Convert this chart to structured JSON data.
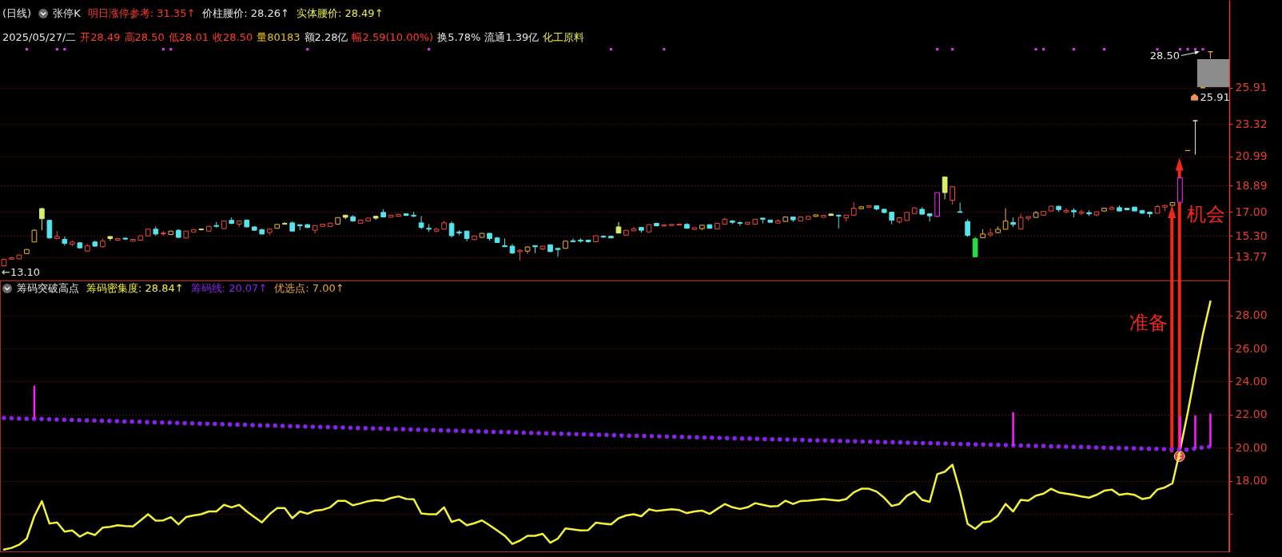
{
  "chart_data": [
    {
      "type": "candlestick",
      "title": "(日线)",
      "subtitle": "张停K",
      "annotations": [
        "明日涨停参考: 31.35↑",
        "价柱腰价: 28.26↑",
        "实体腰价: 28.49↑",
        "2025/05/27/二",
        "开28.49",
        "高28.50",
        "低28.01",
        "收28.50",
        "量80183",
        "额2.28亿",
        "幅2.59(10.00%)",
        "换5.78%",
        "流通1.39亿",
        "化工原料",
        "←13.10",
        "28.50",
        "25.91",
        "机会"
      ],
      "categories": [
        null,
        null,
        null,
        null,
        null,
        null,
        null,
        null,
        null,
        null,
        null,
        null,
        null,
        null,
        null,
        null,
        null,
        null,
        null,
        null,
        null,
        null,
        null,
        null,
        null,
        null,
        null,
        null,
        null,
        null,
        null,
        null,
        null,
        null,
        null,
        null,
        null,
        null,
        null,
        null,
        null,
        null,
        null,
        null,
        null,
        null,
        null,
        null,
        null,
        null,
        null,
        null,
        null,
        null,
        null,
        null,
        null,
        null,
        null,
        null,
        null,
        null,
        null,
        null,
        null,
        null,
        null,
        null,
        null,
        null,
        null,
        null,
        null,
        null,
        null,
        null,
        null,
        null,
        null,
        null,
        null,
        null,
        null,
        null,
        null,
        null,
        null,
        null,
        null,
        null,
        null,
        null,
        null,
        null,
        null,
        null,
        null,
        null,
        null,
        null,
        null,
        null,
        null,
        null,
        null,
        null,
        null,
        null,
        null,
        null,
        null,
        null,
        null,
        null,
        null,
        null,
        null,
        null,
        null,
        null,
        null,
        null,
        null,
        null,
        null,
        null,
        null,
        null,
        null,
        null,
        null,
        null,
        null,
        null,
        null,
        null,
        null,
        null,
        null,
        null,
        null,
        null,
        null,
        null,
        null,
        null,
        null,
        null,
        null,
        null,
        null,
        null,
        null,
        null,
        null,
        null,
        null,
        null,
        null,
        null
      ],
      "ohlc": [
        [
          13.15,
          13.65,
          13.1,
          13.62
        ],
        [
          13.63,
          13.8,
          13.6,
          13.72
        ],
        [
          13.65,
          13.95,
          13.63,
          13.93
        ],
        [
          14.03,
          14.35,
          14.0,
          14.32
        ],
        [
          14.86,
          15.78,
          14.86,
          15.7
        ],
        [
          17.25,
          17.3,
          15.7,
          16.53
        ],
        [
          16.41,
          16.45,
          15.1,
          15.15
        ],
        [
          15.11,
          15.64,
          15.08,
          15.25
        ],
        [
          15.05,
          15.25,
          14.6,
          14.76
        ],
        [
          14.7,
          14.95,
          14.56,
          14.86
        ],
        [
          14.8,
          14.86,
          14.42,
          14.44
        ],
        [
          14.21,
          14.72,
          14.17,
          14.6
        ],
        [
          14.86,
          14.95,
          14.52,
          14.56
        ],
        [
          14.52,
          15.11,
          14.46,
          14.92
        ],
        [
          15.25,
          15.27,
          14.95,
          15.11
        ],
        [
          14.99,
          15.15,
          14.97,
          15.11
        ],
        [
          15.13,
          15.2,
          15.0,
          15.07
        ],
        [
          14.92,
          15.07,
          14.9,
          15.05
        ],
        [
          14.99,
          15.33,
          14.97,
          15.31
        ],
        [
          15.29,
          15.8,
          15.27,
          15.78
        ],
        [
          15.78,
          15.98,
          15.31,
          15.43
        ],
        [
          15.45,
          15.64,
          15.29,
          15.5
        ],
        [
          15.39,
          15.66,
          15.37,
          15.64
        ],
        [
          15.7,
          15.78,
          15.15,
          15.19
        ],
        [
          15.15,
          15.66,
          15.13,
          15.64
        ],
        [
          15.58,
          15.76,
          15.56,
          15.74
        ],
        [
          15.78,
          15.84,
          15.68,
          15.74
        ],
        [
          15.64,
          16.0,
          15.62,
          15.98
        ],
        [
          16.04,
          16.29,
          15.9,
          15.98
        ],
        [
          15.82,
          16.39,
          15.8,
          16.37
        ],
        [
          16.41,
          16.63,
          16.14,
          16.19
        ],
        [
          16.14,
          16.39,
          15.94,
          16.37
        ],
        [
          16.43,
          16.47,
          15.92,
          15.94
        ],
        [
          15.94,
          16.0,
          15.66,
          15.7
        ],
        [
          15.74,
          15.82,
          15.39,
          15.43
        ],
        [
          15.54,
          15.82,
          15.35,
          15.78
        ],
        [
          15.84,
          16.14,
          15.82,
          16.12
        ],
        [
          16.14,
          16.27,
          16.1,
          16.2
        ],
        [
          16.23,
          16.33,
          15.62,
          15.64
        ],
        [
          16.1,
          16.12,
          15.7,
          16.02
        ],
        [
          16.1,
          16.16,
          15.86,
          15.9
        ],
        [
          15.7,
          16.06,
          15.48,
          16.04
        ],
        [
          15.98,
          16.16,
          15.96,
          16.14
        ],
        [
          15.98,
          16.23,
          15.96,
          16.21
        ],
        [
          16.14,
          16.63,
          16.12,
          16.61
        ],
        [
          16.78,
          16.8,
          16.49,
          16.63
        ],
        [
          16.67,
          16.78,
          16.31,
          16.37
        ],
        [
          16.21,
          16.45,
          16.19,
          16.43
        ],
        [
          16.37,
          16.59,
          16.35,
          16.57
        ],
        [
          16.7,
          16.72,
          16.45,
          16.57
        ],
        [
          16.98,
          17.2,
          16.63,
          16.65
        ],
        [
          16.63,
          16.8,
          16.61,
          16.78
        ],
        [
          16.7,
          16.86,
          16.68,
          16.84
        ],
        [
          16.88,
          16.92,
          16.74,
          16.76
        ],
        [
          16.78,
          17.02,
          16.63,
          16.72
        ],
        [
          16.23,
          16.72,
          15.78,
          15.9
        ],
        [
          15.84,
          16.14,
          15.58,
          15.78
        ],
        [
          15.64,
          15.9,
          15.55,
          15.78
        ],
        [
          15.78,
          16.37,
          15.76,
          16.23
        ],
        [
          16.18,
          16.33,
          15.19,
          15.31
        ],
        [
          15.58,
          15.7,
          15.35,
          15.5
        ],
        [
          15.64,
          15.66,
          14.92,
          15.11
        ],
        [
          15.03,
          15.33,
          14.99,
          15.29
        ],
        [
          15.19,
          15.5,
          15.17,
          15.48
        ],
        [
          15.48,
          15.5,
          14.95,
          15.11
        ],
        [
          15.15,
          15.23,
          14.8,
          14.82
        ],
        [
          14.6,
          15.11,
          14.5,
          14.52
        ],
        [
          14.56,
          14.72,
          14.0,
          14.07
        ],
        [
          14.17,
          14.32,
          13.54,
          14.27
        ],
        [
          14.21,
          14.52,
          14.03,
          14.5
        ],
        [
          14.6,
          14.62,
          14.07,
          14.52
        ],
        [
          14.36,
          14.58,
          14.27,
          14.56
        ],
        [
          14.66,
          14.68,
          14.15,
          14.17
        ],
        [
          14.4,
          14.42,
          13.81,
          14.32
        ],
        [
          14.4,
          14.94,
          14.38,
          14.92
        ],
        [
          14.95,
          15.11,
          14.86,
          14.88
        ],
        [
          14.99,
          15.11,
          14.82,
          14.92
        ],
        [
          14.99,
          15.03,
          14.8,
          14.88
        ],
        [
          14.88,
          15.33,
          14.86,
          15.31
        ],
        [
          15.27,
          15.35,
          15.15,
          15.21
        ],
        [
          15.27,
          15.31,
          15.13,
          15.15
        ],
        [
          15.94,
          16.29,
          15.48,
          15.5
        ],
        [
          15.35,
          15.72,
          15.33,
          15.7
        ],
        [
          15.66,
          15.94,
          15.64,
          15.8
        ],
        [
          15.9,
          15.92,
          15.54,
          15.7
        ],
        [
          15.58,
          16.12,
          15.56,
          16.1
        ],
        [
          16.2,
          16.22,
          16.0,
          16.02
        ],
        [
          16.0,
          16.1,
          15.98,
          16.08
        ],
        [
          16.04,
          16.14,
          16.02,
          16.12
        ],
        [
          16.08,
          16.18,
          16.06,
          16.14
        ],
        [
          16.12,
          16.21,
          15.82,
          15.84
        ],
        [
          15.76,
          15.9,
          15.74,
          15.88
        ],
        [
          15.82,
          16.08,
          15.7,
          16.06
        ],
        [
          16.1,
          16.12,
          15.82,
          15.84
        ],
        [
          15.8,
          16.22,
          15.78,
          16.2
        ],
        [
          16.14,
          16.61,
          16.12,
          16.49
        ],
        [
          16.37,
          16.43,
          16.14,
          16.27
        ],
        [
          16.25,
          16.33,
          16.02,
          16.2
        ],
        [
          16.14,
          16.29,
          16.12,
          16.27
        ],
        [
          16.14,
          16.51,
          16.12,
          16.49
        ],
        [
          16.57,
          16.59,
          16.18,
          16.49
        ],
        [
          16.43,
          16.45,
          16.25,
          16.27
        ],
        [
          16.21,
          16.49,
          16.19,
          16.37
        ],
        [
          16.33,
          16.67,
          16.31,
          16.65
        ],
        [
          16.65,
          16.67,
          16.29,
          16.45
        ],
        [
          16.37,
          16.67,
          16.35,
          16.65
        ],
        [
          16.49,
          16.71,
          16.47,
          16.69
        ],
        [
          16.69,
          16.82,
          16.67,
          16.8
        ],
        [
          16.63,
          16.78,
          16.61,
          16.76
        ],
        [
          16.86,
          16.88,
          16.74,
          16.76
        ],
        [
          16.78,
          16.82,
          15.84,
          16.72
        ],
        [
          16.59,
          16.8,
          16.33,
          16.78
        ],
        [
          16.78,
          17.71,
          16.76,
          17.28
        ],
        [
          17.25,
          17.42,
          17.22,
          17.38
        ],
        [
          17.35,
          17.5,
          17.3,
          17.45
        ],
        [
          17.45,
          17.48,
          17.12,
          17.22
        ],
        [
          17.2,
          17.25,
          16.9,
          16.97
        ],
        [
          17.0,
          17.02,
          16.13,
          16.42
        ],
        [
          16.3,
          16.65,
          16.17,
          16.6
        ],
        [
          16.4,
          17.0,
          16.38,
          16.98
        ],
        [
          16.9,
          17.34,
          16.85,
          17.3
        ],
        [
          17.2,
          17.36,
          16.82,
          16.85
        ],
        [
          16.88,
          16.9,
          16.33,
          16.73
        ],
        [
          16.7,
          18.4,
          16.62,
          18.4
        ],
        [
          19.52,
          19.55,
          17.92,
          18.4
        ],
        [
          17.85,
          18.85,
          17.52,
          18.82
        ],
        [
          17.03,
          17.68,
          16.97,
          16.98
        ],
        [
          16.33,
          16.49,
          15.22,
          15.33
        ],
        [
          15.09,
          15.23,
          13.77,
          13.8
        ],
        [
          15.17,
          15.77,
          15.15,
          15.43
        ],
        [
          15.37,
          15.83,
          15.23,
          15.49
        ],
        [
          15.53,
          15.97,
          15.5,
          15.77
        ],
        [
          15.77,
          17.28,
          15.75,
          16.36
        ],
        [
          16.26,
          16.62,
          15.93,
          16.12
        ],
        [
          15.8,
          16.88,
          15.78,
          16.62
        ],
        [
          16.56,
          16.7,
          16.4,
          16.68
        ],
        [
          16.62,
          17.08,
          16.6,
          16.96
        ],
        [
          16.78,
          17.08,
          16.76,
          17.06
        ],
        [
          17.08,
          17.44,
          17.06,
          17.42
        ],
        [
          17.42,
          17.44,
          17.02,
          17.18
        ],
        [
          17.02,
          17.28,
          16.9,
          17.12
        ],
        [
          17.12,
          17.28,
          16.62,
          17.02
        ],
        [
          16.92,
          17.18,
          16.8,
          17.02
        ],
        [
          16.96,
          17.12,
          16.72,
          16.88
        ],
        [
          16.8,
          17.04,
          16.7,
          17.02
        ],
        [
          17.08,
          17.3,
          17.06,
          17.28
        ],
        [
          17.2,
          17.44,
          17.18,
          17.32
        ],
        [
          17.32,
          17.48,
          17.06,
          17.08
        ],
        [
          17.28,
          17.3,
          17.14,
          17.16
        ],
        [
          17.36,
          17.38,
          17.06,
          17.08
        ],
        [
          17.12,
          17.14,
          16.9,
          16.92
        ],
        [
          17.0,
          17.04,
          16.62,
          16.88
        ],
        [
          16.92,
          17.52,
          16.9,
          17.4
        ],
        [
          17.36,
          17.5,
          17.08,
          17.48
        ],
        [
          17.48,
          17.7,
          17.46,
          17.68
        ],
        [
          17.7,
          19.47,
          17.65,
          19.47
        ],
        [
          21.41,
          21.41,
          21.41,
          21.41
        ],
        [
          23.55,
          23.55,
          21.12,
          23.55
        ],
        [
          25.91,
          25.91,
          25.91,
          25.91
        ],
        [
          28.49,
          28.5,
          28.01,
          28.5
        ]
      ],
      "colors": [
        "#f04a3c",
        "#f04a3c",
        "#f04a3c",
        "#f0b428",
        "#f0b428",
        "#d6f06a",
        "#54e4ec",
        "#f04a3c",
        "#54e4ec",
        "#f04a3c",
        "#54e4ec",
        "#f04a3c",
        "#54e4ec",
        "#f04a3c",
        "#d6f06a",
        "#f04a3c",
        "#54e4ec",
        "#f04a3c",
        "#f04a3c",
        "#f04a3c",
        "#54e4ec",
        "#f04a3c",
        "#f0b428",
        "#54e4ec",
        "#f04a3c",
        "#f04a3c",
        "#d6f06a",
        "#f04a3c",
        "#54e4ec",
        "#f04a3c",
        "#54e4ec",
        "#f04a3c",
        "#54e4ec",
        "#54e4ec",
        "#54e4ec",
        "#f04a3c",
        "#f0b428",
        "#d6f06a",
        "#54e4ec",
        "#54e4ec",
        "#54e4ec",
        "#f04a3c",
        "#f04a3c",
        "#f04a3c",
        "#f0b428",
        "#d6f06a",
        "#54e4ec",
        "#f04a3c",
        "#f04a3c",
        "#d6f06a",
        "#54e4ec",
        "#f04a3c",
        "#f04a3c",
        "#54e4ec",
        "#54e4ec",
        "#54e4ec",
        "#54e4ec",
        "#f04a3c",
        "#f04a3c",
        "#54e4ec",
        "#54e4ec",
        "#54e4ec",
        "#f04a3c",
        "#f0b428",
        "#54e4ec",
        "#54e4ec",
        "#54e4ec",
        "#54e4ec",
        "#f04a3c",
        "#f0b428",
        "#54e4ec",
        "#f04a3c",
        "#54e4ec",
        "#54e4ec",
        "#f0b428",
        "#54e4ec",
        "#54e4ec",
        "#54e4ec",
        "#f04a3c",
        "#54e4ec",
        "#54e4ec",
        "#d6f06a",
        "#f04a3c",
        "#f04a3c",
        "#54e4ec",
        "#f04a3c",
        "#54e4ec",
        "#f04a3c",
        "#f04a3c",
        "#f04a3c",
        "#54e4ec",
        "#f04a3c",
        "#f0b428",
        "#54e4ec",
        "#f04a3c",
        "#f04a3c",
        "#54e4ec",
        "#54e4ec",
        "#f04a3c",
        "#f04a3c",
        "#54e4ec",
        "#54e4ec",
        "#f04a3c",
        "#f0b428",
        "#54e4ec",
        "#f04a3c",
        "#f04a3c",
        "#f0b428",
        "#f04a3c",
        "#d6f06a",
        "#54e4ec",
        "#f04a3c",
        "#f04a3c",
        "#f0b428",
        "#f04a3c",
        "#54e4ec",
        "#54e4ec",
        "#54e4ec",
        "#f04a3c",
        "#f04a3c",
        "#f04a3c",
        "#54e4ec",
        "#54e4ec",
        "#ff22ff",
        "#d6f06a",
        "#f04a3c",
        "#54e4ec",
        "#54e4ec",
        "#22dd44",
        "#f0b428",
        "#f04a3c",
        "#f0b428",
        "#f0b428",
        "#54e4ec",
        "#f04a3c",
        "#f04a3c",
        "#f0b428",
        "#f04a3c",
        "#f04a3c",
        "#54e4ec",
        "#f04a3c",
        "#54e4ec",
        "#f04a3c",
        "#54e4ec",
        "#f04a3c",
        "#f0b428",
        "#f04a3c",
        "#54e4ec",
        "#54e4ec",
        "#54e4ec",
        "#54e4ec",
        "#54e4ec",
        "#f04a3c",
        "#f04a3c",
        "#f0b428",
        "#ff22ff",
        "#f0b428",
        "#e6e6e6",
        "#f0b428",
        "#f0b428"
      ],
      "series": [
        {
          "type": "scatter",
          "marker": "square",
          "color": "#d23ce6",
          "values": [
            null,
            null,
            null,
            28.67,
            null,
            null,
            null,
            28.67,
            28.67,
            null,
            null,
            null,
            null,
            null,
            null,
            null,
            null,
            null,
            null,
            null,
            null,
            28.67,
            28.67,
            null,
            null,
            null,
            null,
            null,
            null,
            null,
            null,
            null,
            null,
            null,
            null,
            null,
            null,
            null,
            null,
            null,
            28.67,
            null,
            null,
            null,
            null,
            null,
            null,
            null,
            null,
            null,
            null,
            null,
            null,
            null,
            null,
            null,
            28.67,
            null,
            null,
            null,
            null,
            null,
            null,
            null,
            null,
            null,
            null,
            null,
            null,
            null,
            null,
            null,
            null,
            null,
            null,
            null,
            null,
            null,
            null,
            null,
            28.67,
            null,
            null,
            null,
            null,
            null,
            null,
            28.67,
            null,
            null,
            null,
            null,
            null,
            null,
            null,
            null,
            null,
            null,
            null,
            null,
            null,
            null,
            null,
            null,
            null,
            null,
            null,
            null,
            null,
            null,
            null,
            null,
            null,
            null,
            null,
            null,
            null,
            null,
            null,
            null,
            null,
            null,
            null,
            28.67,
            null,
            28.67,
            null,
            null,
            null,
            null,
            null,
            null,
            null,
            null,
            null,
            null,
            28.67,
            28.67,
            null,
            null,
            null,
            28.67,
            null,
            null,
            null,
            28.67,
            null,
            null,
            null,
            null,
            null,
            null,
            28.67,
            null,
            null,
            28.67,
            28.67,
            28.67,
            28.67,
            null
          ]
        }
      ],
      "ylim": [
        12.1,
        32.2
      ],
      "yticks": [
        13.77,
        {
          "value": 15.3,
          "label": "15.30"
        },
        {
          "value": 17,
          "label": "17.00"
        },
        18.89,
        20.99,
        23.32,
        25.91
      ],
      "grid": "y",
      "tick_labels": "y"
    },
    {
      "type": "line",
      "title": "筹码突破高点",
      "annotations": [
        "优选点: 7.00↑",
        "准备"
      ],
      "categories": [
        null,
        null,
        null,
        null,
        null,
        null,
        null,
        null,
        null,
        null,
        null,
        null,
        null,
        null,
        null,
        null,
        null,
        null,
        null,
        null,
        null,
        null,
        null,
        null,
        null,
        null,
        null,
        null,
        null,
        null,
        null,
        null,
        null,
        null,
        null,
        null,
        null,
        null,
        null,
        null,
        null,
        null,
        null,
        null,
        null,
        null,
        null,
        null,
        null,
        null,
        null,
        null,
        null,
        null,
        null,
        null,
        null,
        null,
        null,
        null,
        null,
        null,
        null,
        null,
        null,
        null,
        null,
        null,
        null,
        null,
        null,
        null,
        null,
        null,
        null,
        null,
        null,
        null,
        null,
        null,
        null,
        null,
        null,
        null,
        null,
        null,
        null,
        null,
        null,
        null,
        null,
        null,
        null,
        null,
        null,
        null,
        null,
        null,
        null,
        null,
        null,
        null,
        null,
        null,
        null,
        null,
        null,
        null,
        null,
        null,
        null,
        null,
        null,
        null,
        null,
        null,
        null,
        null,
        null,
        null,
        null,
        null,
        null,
        null,
        null,
        null,
        null,
        null,
        null,
        null,
        null,
        null,
        null,
        null,
        null,
        null,
        null,
        null,
        null,
        null,
        null,
        null,
        null,
        null,
        null,
        null,
        null,
        null,
        null,
        null,
        null,
        null,
        null,
        null,
        null,
        null,
        null,
        null,
        null,
        null
      ],
      "series": [
        {
          "name": "筹码密集度: 28.84↑",
          "color": "#f2f23a",
          "values": [
            13.86,
            13.96,
            14.15,
            14.52,
            15.87,
            16.78,
            15.43,
            15.5,
            14.94,
            15.01,
            14.64,
            14.89,
            14.74,
            15.18,
            15.23,
            15.33,
            15.28,
            15.26,
            15.62,
            15.99,
            15.6,
            15.62,
            15.82,
            15.38,
            15.82,
            15.92,
            15.99,
            16.16,
            16.16,
            16.56,
            16.41,
            16.56,
            16.16,
            15.82,
            15.5,
            15.99,
            16.36,
            16.36,
            15.75,
            16.16,
            16.02,
            16.21,
            16.26,
            16.41,
            16.8,
            16.8,
            16.53,
            16.65,
            16.78,
            16.85,
            16.8,
            16.97,
            17.07,
            16.92,
            16.9,
            16.04,
            15.99,
            15.99,
            16.41,
            15.53,
            15.67,
            15.33,
            15.45,
            15.62,
            15.33,
            15.01,
            14.69,
            14.2,
            14.4,
            14.69,
            14.69,
            14.81,
            14.27,
            14.52,
            15.13,
            15.08,
            15.01,
            15.03,
            15.48,
            15.43,
            15.38,
            15.75,
            15.92,
            15.99,
            15.87,
            16.29,
            16.19,
            16.24,
            16.29,
            16.24,
            16.06,
            16.16,
            16.21,
            16.01,
            16.31,
            16.61,
            16.41,
            16.31,
            16.41,
            16.66,
            16.56,
            16.46,
            16.49,
            16.81,
            16.61,
            16.79,
            16.81,
            16.86,
            16.91,
            16.86,
            16.81,
            16.91,
            17.31,
            17.53,
            17.53,
            17.36,
            16.99,
            16.49,
            16.61,
            17.11,
            17.36,
            16.86,
            16.74,
            18.41,
            18.56,
            18.98,
            17.36,
            15.41,
            15.11,
            15.51,
            15.56,
            15.91,
            16.61,
            16.16,
            16.86,
            16.81,
            17.11,
            17.23,
            17.53,
            17.31,
            17.23,
            17.16,
            17.06,
            16.99,
            17.16,
            17.41,
            17.48,
            17.16,
            17.23,
            17.16,
            16.91,
            16.99,
            17.48,
            17.61,
            17.86,
            19.86,
            22.1,
            24.55,
            26.85,
            28.84
          ]
        },
        {
          "name": "筹码线: 20.07↑",
          "type": "line",
          "line_style": "dotted",
          "color": "#8a22ee",
          "values": [
            21.8,
            21.79,
            21.77,
            21.76,
            21.75,
            21.74,
            21.72,
            21.71,
            21.7,
            21.68,
            21.67,
            21.66,
            21.65,
            21.63,
            21.62,
            21.61,
            21.59,
            21.58,
            21.57,
            21.55,
            21.54,
            21.53,
            21.52,
            21.5,
            21.49,
            21.48,
            21.46,
            21.45,
            21.44,
            21.43,
            21.41,
            21.4,
            21.39,
            21.37,
            21.36,
            21.35,
            21.34,
            21.32,
            21.31,
            21.3,
            21.28,
            21.27,
            21.26,
            21.25,
            21.23,
            21.22,
            21.21,
            21.19,
            21.18,
            21.17,
            21.16,
            21.14,
            21.13,
            21.12,
            21.1,
            21.09,
            21.08,
            21.06,
            21.05,
            21.04,
            21.03,
            21.01,
            21.0,
            20.99,
            20.97,
            20.96,
            20.95,
            20.94,
            20.92,
            20.91,
            20.9,
            20.88,
            20.87,
            20.86,
            20.85,
            20.83,
            20.82,
            20.81,
            20.79,
            20.78,
            20.77,
            20.75,
            20.74,
            20.73,
            20.72,
            20.71,
            20.7,
            20.69,
            20.67,
            20.66,
            20.65,
            20.64,
            20.63,
            20.62,
            20.6,
            20.59,
            20.58,
            20.57,
            20.56,
            20.55,
            20.53,
            20.52,
            20.51,
            20.5,
            20.49,
            20.48,
            20.46,
            20.45,
            20.44,
            20.43,
            20.42,
            20.41,
            20.4,
            20.38,
            20.37,
            20.36,
            20.35,
            20.34,
            20.33,
            20.31,
            20.3,
            20.29,
            20.28,
            20.27,
            20.26,
            20.24,
            20.23,
            20.22,
            20.21,
            20.2,
            20.19,
            20.18,
            20.16,
            20.15,
            20.14,
            20.13,
            20.12,
            20.11,
            20.09,
            20.08,
            20.07,
            20.06,
            20.05,
            20.04,
            20.02,
            20.01,
            20.0,
            19.99,
            19.98,
            19.97,
            19.96,
            19.94,
            19.93,
            19.92,
            19.91,
            19.9,
            19.89,
            19.96,
            20.02,
            20.07
          ]
        },
        {
          "type": "bar",
          "color": "#ff1cff",
          "values": [
            null,
            null,
            null,
            null,
            2,
            null,
            null,
            null,
            null,
            null,
            null,
            null,
            null,
            null,
            null,
            null,
            null,
            null,
            null,
            null,
            null,
            null,
            null,
            null,
            null,
            null,
            null,
            null,
            null,
            null,
            null,
            null,
            null,
            null,
            null,
            null,
            null,
            null,
            null,
            null,
            null,
            null,
            null,
            null,
            null,
            null,
            null,
            null,
            null,
            null,
            null,
            null,
            null,
            null,
            null,
            null,
            null,
            null,
            null,
            null,
            null,
            null,
            null,
            null,
            null,
            null,
            null,
            null,
            null,
            null,
            null,
            null,
            null,
            null,
            null,
            null,
            null,
            null,
            null,
            null,
            null,
            null,
            null,
            null,
            null,
            null,
            null,
            null,
            null,
            null,
            null,
            null,
            null,
            null,
            null,
            null,
            null,
            null,
            null,
            null,
            null,
            null,
            null,
            null,
            null,
            null,
            null,
            null,
            null,
            null,
            null,
            null,
            null,
            null,
            null,
            null,
            null,
            null,
            null,
            null,
            null,
            null,
            null,
            null,
            null,
            null,
            null,
            null,
            null,
            null,
            null,
            null,
            null,
            2,
            null,
            null,
            null,
            null,
            null,
            null,
            null,
            null,
            null,
            null,
            null,
            null,
            null,
            null,
            null,
            null,
            null,
            null,
            null,
            null,
            null,
            2,
            null,
            2,
            null,
            2
          ],
          "base": [
            null,
            null,
            null,
            null,
            21.75,
            null,
            null,
            null,
            null,
            null,
            null,
            null,
            null,
            null,
            null,
            null,
            null,
            null,
            null,
            null,
            null,
            null,
            null,
            null,
            null,
            null,
            null,
            null,
            null,
            null,
            null,
            null,
            null,
            null,
            null,
            null,
            null,
            null,
            null,
            null,
            null,
            null,
            null,
            null,
            null,
            null,
            null,
            null,
            null,
            null,
            null,
            null,
            null,
            null,
            null,
            null,
            null,
            null,
            null,
            null,
            null,
            null,
            null,
            null,
            null,
            null,
            null,
            null,
            null,
            null,
            null,
            null,
            null,
            null,
            null,
            null,
            null,
            null,
            null,
            null,
            null,
            null,
            null,
            null,
            null,
            null,
            null,
            null,
            null,
            null,
            null,
            null,
            null,
            null,
            null,
            null,
            null,
            null,
            null,
            null,
            null,
            null,
            null,
            null,
            null,
            null,
            null,
            null,
            null,
            null,
            null,
            null,
            null,
            null,
            null,
            null,
            null,
            null,
            null,
            null,
            null,
            null,
            null,
            null,
            null,
            null,
            null,
            null,
            null,
            null,
            null,
            null,
            null,
            20.15,
            null,
            null,
            null,
            null,
            null,
            null,
            null,
            null,
            null,
            null,
            null,
            null,
            null,
            null,
            null,
            null,
            null,
            null,
            null,
            null,
            null,
            19.9,
            null,
            19.96,
            null,
            20.07
          ]
        }
      ],
      "ylim": [
        13.7,
        30.1
      ],
      "yticks": [
        {
          "value": 16,
          "label": null
        },
        {
          "value": 18,
          "label": "18.00"
        },
        {
          "value": 20,
          "label": "20.00"
        },
        {
          "value": 22,
          "label": "22.00"
        },
        {
          "value": 24,
          "label": "24.00"
        },
        {
          "value": 26,
          "label": "26.00"
        },
        {
          "value": 28,
          "label": "28.00"
        }
      ],
      "grid": "y",
      "legend": "top left",
      "tick_labels": "y"
    }
  ]
}
